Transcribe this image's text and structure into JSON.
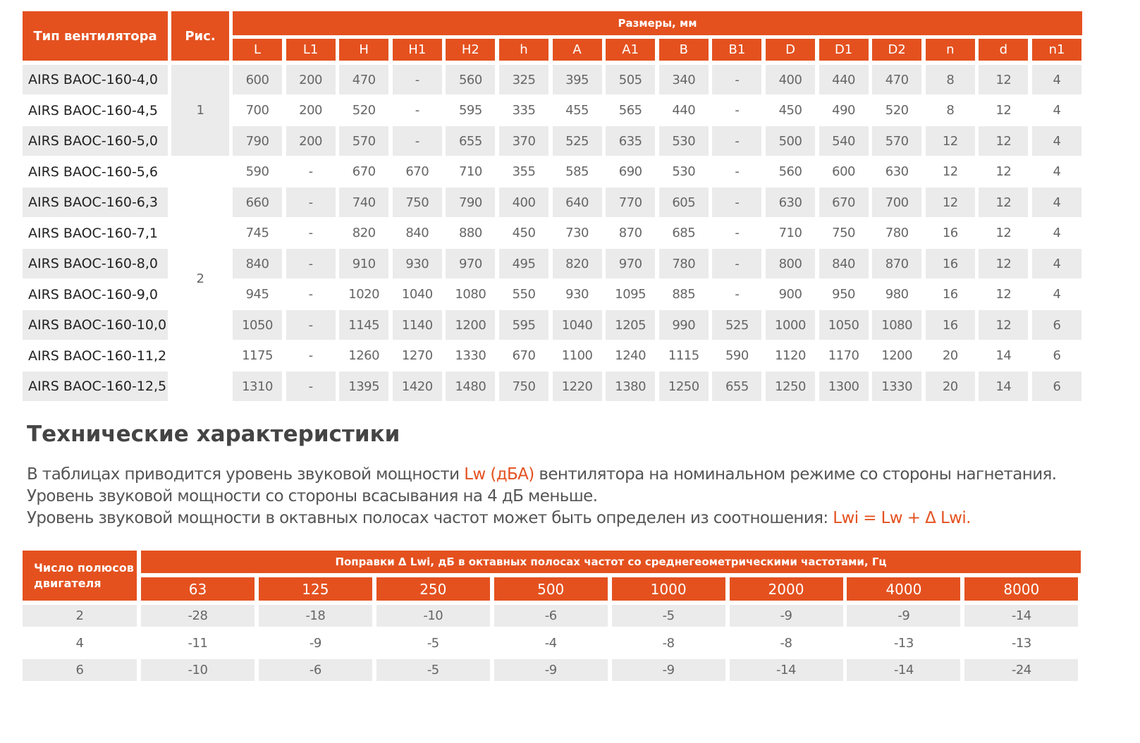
{
  "table1": {
    "header": {
      "type": "Тип вентилятора",
      "fig": "Рис.",
      "dims": "Размеры, мм",
      "columns": [
        "L",
        "L1",
        "H",
        "H1",
        "H2",
        "h",
        "A",
        "A1",
        "B",
        "B1",
        "D",
        "D1",
        "D2",
        "n",
        "d",
        "n1"
      ]
    },
    "figures": [
      "1",
      "2"
    ],
    "rows": [
      {
        "model": "AIRS BAOC-160-4,0",
        "values": [
          600,
          200,
          470,
          "-",
          560,
          325,
          395,
          505,
          340,
          "-",
          400,
          440,
          470,
          8,
          12,
          4
        ]
      },
      {
        "model": "AIRS BAOC-160-4,5",
        "values": [
          700,
          200,
          520,
          "-",
          595,
          335,
          455,
          565,
          440,
          "-",
          450,
          490,
          520,
          8,
          12,
          4
        ]
      },
      {
        "model": "AIRS BAOC-160-5,0",
        "values": [
          790,
          200,
          570,
          "-",
          655,
          370,
          525,
          635,
          530,
          "-",
          500,
          540,
          570,
          12,
          12,
          4
        ]
      },
      {
        "model": "AIRS BAOC-160-5,6",
        "values": [
          590,
          "-",
          670,
          670,
          710,
          355,
          585,
          690,
          530,
          "-",
          560,
          600,
          630,
          12,
          12,
          4
        ]
      },
      {
        "model": "AIRS BAOC-160-6,3",
        "values": [
          660,
          "-",
          740,
          750,
          790,
          400,
          640,
          770,
          605,
          "-",
          630,
          670,
          700,
          12,
          12,
          4
        ]
      },
      {
        "model": "AIRS BAOC-160-7,1",
        "values": [
          745,
          "-",
          820,
          840,
          880,
          450,
          730,
          870,
          685,
          "-",
          710,
          750,
          780,
          16,
          12,
          4
        ]
      },
      {
        "model": "AIRS BAOC-160-8,0",
        "values": [
          840,
          "-",
          910,
          930,
          970,
          495,
          820,
          970,
          780,
          "-",
          800,
          840,
          870,
          16,
          12,
          4
        ]
      },
      {
        "model": "AIRS BAOC-160-9,0",
        "values": [
          945,
          "-",
          1020,
          1040,
          1080,
          550,
          930,
          1095,
          885,
          "-",
          900,
          950,
          980,
          16,
          12,
          4
        ]
      },
      {
        "model": "AIRS BAOC-160-10,0",
        "values": [
          1050,
          "-",
          1145,
          1140,
          1200,
          595,
          1040,
          1205,
          990,
          525,
          1000,
          1050,
          1080,
          16,
          12,
          6
        ]
      },
      {
        "model": "AIRS BAOC-160-11,2",
        "values": [
          1175,
          "-",
          1260,
          1270,
          1330,
          670,
          1100,
          1240,
          1115,
          590,
          1120,
          1170,
          1200,
          20,
          14,
          6
        ]
      },
      {
        "model": "AIRS BAOC-160-12,5",
        "values": [
          1310,
          "-",
          1395,
          1420,
          1480,
          750,
          1220,
          1380,
          1250,
          655,
          1250,
          1300,
          1330,
          20,
          14,
          6
        ]
      }
    ]
  },
  "text": {
    "heading": "Технические характеристики",
    "line1": [
      "В таблицах приводится уровень звуковой мощности ",
      "Lw (дБА)",
      " вентилятора на номинальном режиме со стороны нагнетания."
    ],
    "line2": "Уровень звуковой мощности со стороны всасывания на 4 дБ меньше.",
    "line3": [
      "Уровень звуковой мощности в октавных полосах частот может быть определен из соотношения: ",
      "Lwi = Lw + Δ Lwi."
    ]
  },
  "table2": {
    "header": {
      "poles": "Число полюсов двигателя",
      "corrections": "Поправки Δ Lwi, дБ в октавных полосах частот со среднегеометрическими частотами, Гц",
      "frequencies": [
        63,
        125,
        250,
        500,
        1000,
        2000,
        4000,
        8000
      ]
    },
    "rows": [
      {
        "poles": 2,
        "values": [
          -28,
          -18,
          -10,
          -6,
          -5,
          -9,
          -9,
          -14
        ]
      },
      {
        "poles": 4,
        "values": [
          -11,
          -9,
          -5,
          -4,
          -8,
          -8,
          -13,
          -13
        ]
      },
      {
        "poles": 6,
        "values": [
          -10,
          -6,
          -5,
          -9,
          -9,
          -14,
          -14,
          -24
        ]
      }
    ]
  }
}
